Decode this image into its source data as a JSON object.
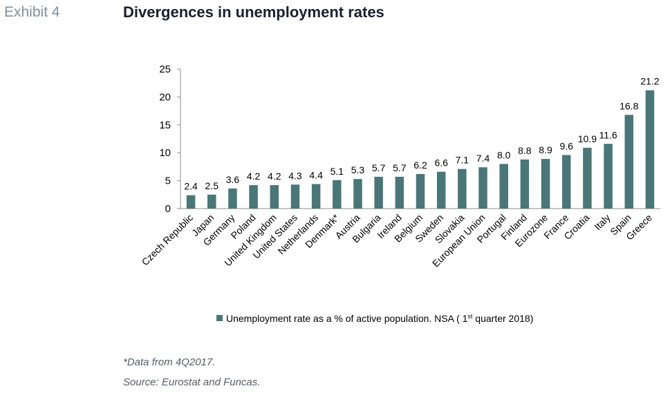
{
  "header": {
    "exhibit_label": "Exhibit 4",
    "title": "Divergences in unemployment rates"
  },
  "notes": {
    "note1": "*Data from 4Q2017.",
    "source": "Source: Eurostat and Funcas."
  },
  "colors": {
    "bar": "#4a7678",
    "axis": "#8c8c8c"
  },
  "chart_data": {
    "type": "bar",
    "title": "Divergences in unemployment rates",
    "categories": [
      "Czech Republic",
      "Japan",
      "Germany",
      "Poland",
      "United Kingdom",
      "United States",
      "Netherlands",
      "Denmark*",
      "Austria",
      "Bulgaria",
      "Ireland",
      "Belgium",
      "Sweden",
      "Slovakia",
      "European Union",
      "Portugal",
      "Finland",
      "Eurozone",
      "France",
      "Croatia",
      "Italy",
      "Spain",
      "Greece"
    ],
    "series": [
      {
        "name": "Unemployment rate as a % of active population. NSA ( 1st quarter 2018)",
        "values": [
          2.4,
          2.5,
          3.6,
          4.2,
          4.2,
          4.3,
          4.4,
          5.1,
          5.3,
          5.7,
          5.7,
          6.2,
          6.6,
          7.1,
          7.4,
          8.0,
          8.8,
          8.9,
          9.6,
          10.9,
          11.6,
          16.8,
          21.2
        ]
      }
    ],
    "data_labels": [
      "2.4",
      "2.5",
      "3.6",
      "4.2",
      "4.2",
      "4.3",
      "4.4",
      "5.1",
      "5.3",
      "5.7",
      "5.7",
      "6.2",
      "6.6",
      "7.1",
      "7.4",
      "8.0",
      "8.8",
      "8.9",
      "9.6",
      "10.9",
      "11.6",
      "16.8",
      "21.2"
    ],
    "ylim": [
      0,
      25
    ],
    "yticks": [
      0,
      5,
      10,
      15,
      20,
      25
    ],
    "grid": false,
    "legend": {
      "position": "bottom",
      "text_before": "Unemployment rate as a % of active population. NSA ( 1",
      "superscript": "st",
      "text_after": " quarter 2018)"
    }
  }
}
